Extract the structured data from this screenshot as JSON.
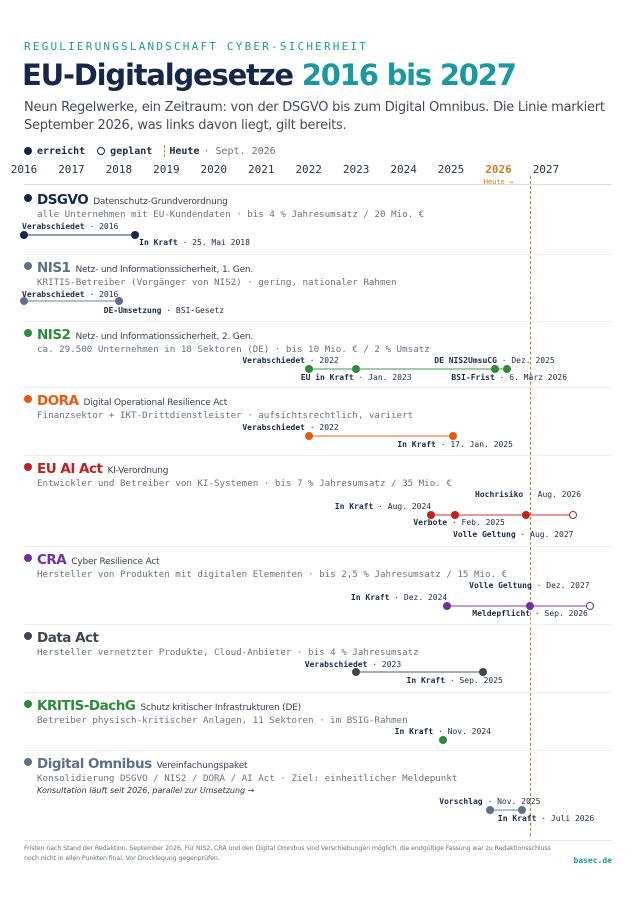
{
  "header": {
    "kicker": "REGULIERUNGSLANDSCHAFT CYBER-SICHERHEIT",
    "title_part1": "EU-Digitalgesetze",
    "title_part2": "2016 bis 2027",
    "subtitle": "Neun Regelwerke, ein Zeitraum: von der DSGVO bis zum Digital Omnibus. Die Linie markiert September 2026, was links davon liegt, gilt bereits."
  },
  "legend": {
    "reached": "erreicht",
    "planned": "geplant",
    "today": "Heute",
    "today_date": "· Sept. 2026"
  },
  "axis": {
    "years": [
      "2016",
      "2017",
      "2018",
      "2019",
      "2020",
      "2021",
      "2022",
      "2023",
      "2024",
      "2025",
      "2026",
      "2027"
    ],
    "current_year": "2026",
    "today_caption": "Heute →",
    "today_value": 2026.67
  },
  "colors": {
    "navy": "#17274a",
    "slate": "#5f7285",
    "green": "#2e8b3a",
    "orange": "#e8590c",
    "red": "#c21f1f",
    "purple": "#7030a0",
    "darkgray": "#3f464f",
    "teal": "#1a9a9e",
    "amber": "#c8811f"
  },
  "regulations": [
    {
      "name": "DSGVO",
      "full": "Datenschutz-Grundverordnung",
      "color": "#17274a",
      "desc": "alle Unternehmen mit EU-Kundendaten · bis 4 % Jahresumsatz / 20 Mio. €",
      "milestones": [
        {
          "label": "Verabschiedet",
          "date": "2016",
          "value": 2016.0,
          "status": "reached"
        },
        {
          "label": "In Kraft",
          "date": "25. Mai 2018",
          "value": 2018.33,
          "status": "reached"
        }
      ]
    },
    {
      "name": "NIS1",
      "full": "Netz- und Informationssicherheit, 1. Gen.",
      "color": "#5f7285",
      "desc": "KRITIS-Betreiber (Vorgänger von NIS2) · gering, nationaler Rahmen",
      "milestones": [
        {
          "label": "Verabschiedet",
          "date": "2016",
          "value": 2016.0,
          "status": "reached"
        },
        {
          "label": "DE-Umsetzung",
          "date": "BSI-Gesetz",
          "value": 2018.0,
          "status": "reached"
        }
      ]
    },
    {
      "name": "NIS2",
      "full": "Netz- und Informationssicherheit, 2. Gen.",
      "color": "#2e8b3a",
      "desc": "ca. 29.500 Unternehmen in 18 Sektoren (DE) · bis 10 Mio. € / 2 % Umsatz",
      "milestones": [
        {
          "label": "Verabschiedet",
          "date": "2022",
          "value": 2022.0,
          "status": "reached"
        },
        {
          "label": "EU in Kraft",
          "date": "Jan. 2023",
          "value": 2023.0,
          "status": "reached"
        },
        {
          "label": "DE NIS2UmsuCG",
          "date": "Dez. 2025",
          "value": 2025.92,
          "status": "reached"
        },
        {
          "label": "BSI-Frist",
          "date": "6. März 2026",
          "value": 2026.18,
          "status": "reached"
        }
      ]
    },
    {
      "name": "DORA",
      "full": "Digital Operational Resilience Act",
      "color": "#e8590c",
      "desc": "Finanzsektor + IKT-Drittdienstleister · aufsichtsrechtlich, variiert",
      "milestones": [
        {
          "label": "Verabschiedet",
          "date": "2022",
          "value": 2022.0,
          "status": "reached"
        },
        {
          "label": "In Kraft",
          "date": "17. Jan. 2025",
          "value": 2025.04,
          "status": "reached"
        }
      ]
    },
    {
      "name": "EU AI Act",
      "full": "KI-Verordnung",
      "color": "#c21f1f",
      "desc": "Entwickler und Betreiber von KI-Systemen · bis 7 % Jahresumsatz / 35 Mio. €",
      "milestones": [
        {
          "label": "In Kraft",
          "date": "Aug. 2024",
          "value": 2024.58,
          "status": "reached"
        },
        {
          "label": "Verbote",
          "date": "Feb. 2025",
          "value": 2025.08,
          "status": "reached"
        },
        {
          "label": "Hochrisiko",
          "date": "Aug. 2026",
          "value": 2026.58,
          "status": "reached"
        },
        {
          "label": "Volle Geltung",
          "date": "Aug. 2027",
          "value": 2027.58,
          "status": "planned"
        }
      ]
    },
    {
      "name": "CRA",
      "full": "Cyber Resilience Act",
      "color": "#7030a0",
      "desc": "Hersteller von Produkten mit digitalen Elementen · bis 2,5 % Jahresumsatz / 15 Mio. €",
      "milestones": [
        {
          "label": "In Kraft",
          "date": "Dez. 2024",
          "value": 2024.92,
          "status": "reached"
        },
        {
          "label": "Meldepflicht",
          "date": "Sep. 2026",
          "value": 2026.67,
          "status": "reached"
        },
        {
          "label": "Volle Geltung",
          "date": "Dez. 2027",
          "value": 2027.92,
          "status": "planned"
        }
      ]
    },
    {
      "name": "Data Act",
      "full": "",
      "color": "#3f464f",
      "desc": "Hersteller vernetzter Produkte, Cloud-Anbieter · bis 4 % Jahresumsatz",
      "milestones": [
        {
          "label": "Verabschiedet",
          "date": "2023",
          "value": 2023.0,
          "status": "reached"
        },
        {
          "label": "In Kraft",
          "date": "Sep. 2025",
          "value": 2025.67,
          "status": "reached"
        }
      ]
    },
    {
      "name": "KRITIS-DachG",
      "full": "Schutz kritischer Infrastrukturen (DE)",
      "color": "#2e8b3a",
      "desc": "Betreiber physisch-kritischer Anlagen, 11 Sektoren · im BSIG-Rahmen",
      "milestones": [
        {
          "label": "In Kraft",
          "date": "Nov. 2024",
          "value": 2024.83,
          "status": "reached"
        }
      ]
    },
    {
      "name": "Digital Omnibus",
      "full": "Vereinfachungspaket",
      "color": "#5f7285",
      "desc": "Konsolidierung DSGVO / NIS2 / DORA / AI Act · Ziel: einheitlicher Meldepunkt",
      "note": "Konsultation läuft seit 2026, parallel zur Umsetzung →",
      "milestones": [
        {
          "label": "Vorschlag",
          "date": "Nov. 2025",
          "value": 2025.83,
          "status": "reached"
        },
        {
          "label": "In Kraft",
          "date": "Juli 2026",
          "value": 2026.5,
          "status": "reached"
        }
      ]
    }
  ],
  "footer": {
    "note": "Fristen nach Stand der Redaktion, September 2026. Für NIS2, CRA und den Digital Omnibus sind Verschiebungen möglich, die endgültige Fassung war zu Redaktionsschluss noch nicht in allen Punkten final. Vor Drucklegung gegenprüfen.",
    "brand": "basec.de"
  }
}
